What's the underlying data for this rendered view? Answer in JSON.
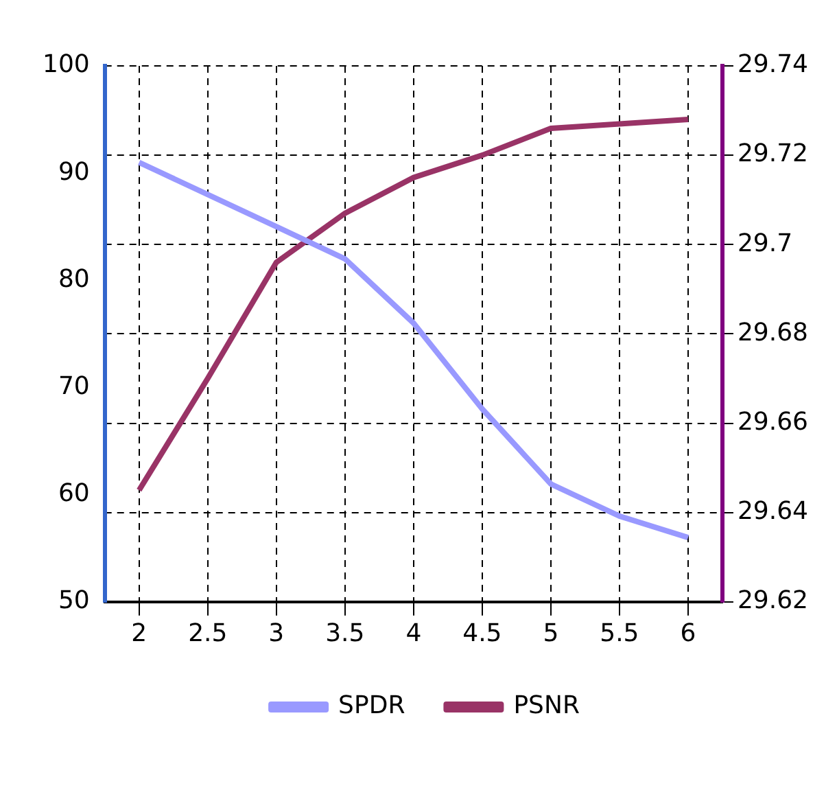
{
  "chart_data": {
    "type": "line",
    "categories": [
      "2",
      "2.5",
      "3",
      "3.5",
      "4",
      "4.5",
      "5",
      "5.5",
      "6"
    ],
    "series": [
      {
        "name": "SPDR",
        "color": "#9999ff",
        "values": [
          91,
          88,
          85,
          82,
          76,
          68,
          61,
          58,
          56
        ]
      },
      {
        "name": "PSNR",
        "color": "#993366",
        "axis": "y2",
        "values": [
          29.645,
          29.67,
          29.696,
          29.707,
          29.715,
          29.72,
          29.726,
          29.727,
          29.728
        ]
      }
    ],
    "ylim": [
      50,
      100
    ],
    "yticks": [
      50,
      60,
      70,
      80,
      90,
      100
    ],
    "y2lim": [
      29.62,
      29.74
    ],
    "y2ticks": [
      29.62,
      29.64,
      29.66,
      29.68,
      29.7,
      29.72,
      29.74
    ],
    "grid": true,
    "legend": "bottom",
    "marker": "none",
    "line_style": "solid"
  }
}
